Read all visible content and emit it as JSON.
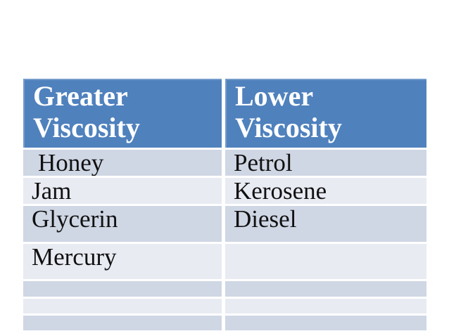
{
  "page": {
    "background": "#ffffff"
  },
  "table": {
    "headers": [
      {
        "label": "Greater Viscosity"
      },
      {
        "label": "Lower Viscosity"
      }
    ],
    "rows": [
      {
        "left": "Honey",
        "right": "Petrol"
      },
      {
        "left": "Jam",
        "right": "Kerosene"
      },
      {
        "left": "Glycerin",
        "right": "Diesel"
      },
      {
        "left": "Mercury",
        "right": ""
      },
      {
        "left": "",
        "right": ""
      },
      {
        "left": "",
        "right": ""
      },
      {
        "left": "",
        "right": ""
      }
    ],
    "colors": {
      "page_bg": "#ffffff",
      "header_bg": "#4f81bd",
      "header_text": "#ffffff",
      "row_band_dark": "#cfd6e4",
      "row_band_light": "#e9ebf3",
      "body_text": "#111111"
    }
  }
}
